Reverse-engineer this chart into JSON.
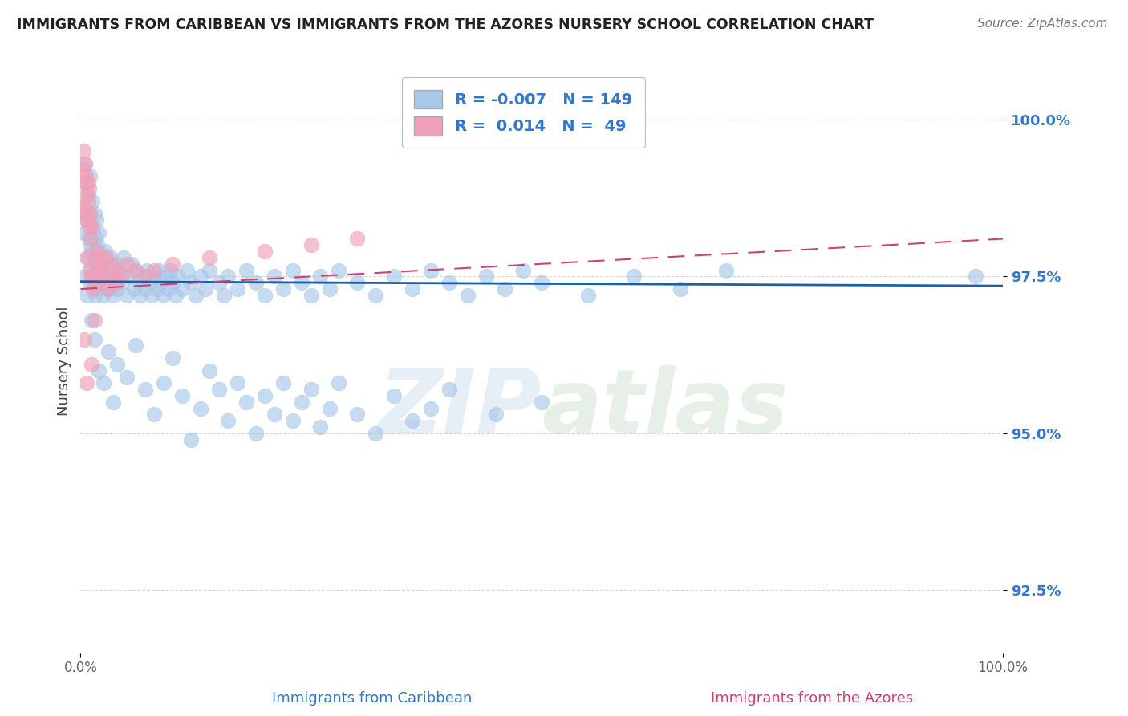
{
  "title": "IMMIGRANTS FROM CARIBBEAN VS IMMIGRANTS FROM THE AZORES NURSERY SCHOOL CORRELATION CHART",
  "source": "Source: ZipAtlas.com",
  "xlabel_blue": "Immigrants from Caribbean",
  "xlabel_pink": "Immigrants from the Azores",
  "ylabel": "Nursery School",
  "watermark_zip": "ZIP",
  "watermark_atlas": "atlas",
  "xlim": [
    0.0,
    100.0
  ],
  "ylim": [
    91.5,
    100.8
  ],
  "yticks": [
    92.5,
    95.0,
    97.5,
    100.0
  ],
  "R_blue": -0.007,
  "N_blue": 149,
  "R_pink": 0.014,
  "N_pink": 49,
  "blue_color": "#a8c8e8",
  "blue_line_color": "#1a5fa8",
  "pink_color": "#f0a0b8",
  "pink_line_color": "#d04070",
  "title_color": "#222222",
  "source_color": "#777777",
  "label_color": "#3377cc",
  "background_color": "#ffffff",
  "grid_color": "#cccccc",
  "blue_trend_y0": 97.42,
  "blue_trend_y1": 97.35,
  "pink_trend_y0": 97.3,
  "pink_trend_y1": 98.1,
  "blue_scatter_x": [
    0.3,
    0.4,
    0.5,
    0.5,
    0.6,
    0.7,
    0.7,
    0.8,
    0.8,
    0.9,
    1.0,
    1.0,
    1.0,
    1.1,
    1.1,
    1.2,
    1.2,
    1.3,
    1.3,
    1.4,
    1.4,
    1.5,
    1.5,
    1.6,
    1.6,
    1.7,
    1.7,
    1.8,
    1.8,
    1.9,
    2.0,
    2.0,
    2.1,
    2.2,
    2.3,
    2.4,
    2.5,
    2.6,
    2.7,
    2.8,
    3.0,
    3.2,
    3.3,
    3.5,
    3.7,
    3.9,
    4.0,
    4.2,
    4.5,
    4.7,
    5.0,
    5.3,
    5.5,
    5.8,
    6.0,
    6.2,
    6.5,
    6.7,
    7.0,
    7.2,
    7.5,
    7.7,
    8.0,
    8.3,
    8.5,
    8.7,
    9.0,
    9.3,
    9.5,
    9.7,
    10.0,
    10.3,
    10.5,
    11.0,
    11.5,
    12.0,
    12.5,
    13.0,
    13.5,
    14.0,
    15.0,
    15.5,
    16.0,
    17.0,
    18.0,
    19.0,
    20.0,
    21.0,
    22.0,
    23.0,
    24.0,
    25.0,
    26.0,
    27.0,
    28.0,
    30.0,
    32.0,
    34.0,
    36.0,
    38.0,
    40.0,
    42.0,
    44.0,
    46.0,
    48.0,
    50.0,
    55.0,
    60.0,
    65.0,
    70.0,
    97.0,
    1.2,
    1.5,
    2.0,
    2.5,
    3.0,
    3.5,
    4.0,
    5.0,
    6.0,
    7.0,
    8.0,
    9.0,
    10.0,
    11.0,
    12.0,
    13.0,
    14.0,
    15.0,
    16.0,
    17.0,
    18.0,
    19.0,
    20.0,
    21.0,
    22.0,
    23.0,
    24.0,
    25.0,
    26.0,
    27.0,
    28.0,
    30.0,
    32.0,
    34.0,
    36.0,
    38.0,
    40.0,
    45.0,
    50.0
  ],
  "blue_scatter_y": [
    98.6,
    98.2,
    99.3,
    97.5,
    99.0,
    98.4,
    97.2,
    98.8,
    97.8,
    98.1,
    98.5,
    97.4,
    99.1,
    98.0,
    97.6,
    98.3,
    97.9,
    97.5,
    98.7,
    97.3,
    98.2,
    97.8,
    98.5,
    97.2,
    98.1,
    97.7,
    98.4,
    97.5,
    98.0,
    97.3,
    97.9,
    98.2,
    97.6,
    97.8,
    97.4,
    97.2,
    97.7,
    97.5,
    97.9,
    97.3,
    97.6,
    97.4,
    97.8,
    97.2,
    97.5,
    97.7,
    97.3,
    97.6,
    97.4,
    97.8,
    97.2,
    97.5,
    97.7,
    97.3,
    97.6,
    97.4,
    97.2,
    97.5,
    97.3,
    97.6,
    97.4,
    97.2,
    97.5,
    97.3,
    97.6,
    97.4,
    97.2,
    97.5,
    97.3,
    97.6,
    97.4,
    97.2,
    97.5,
    97.3,
    97.6,
    97.4,
    97.2,
    97.5,
    97.3,
    97.6,
    97.4,
    97.2,
    97.5,
    97.3,
    97.6,
    97.4,
    97.2,
    97.5,
    97.3,
    97.6,
    97.4,
    97.2,
    97.5,
    97.3,
    97.6,
    97.4,
    97.2,
    97.5,
    97.3,
    97.6,
    97.4,
    97.2,
    97.5,
    97.3,
    97.6,
    97.4,
    97.2,
    97.5,
    97.3,
    97.6,
    97.5,
    96.8,
    96.5,
    96.0,
    95.8,
    96.3,
    95.5,
    96.1,
    95.9,
    96.4,
    95.7,
    95.3,
    95.8,
    96.2,
    95.6,
    94.9,
    95.4,
    96.0,
    95.7,
    95.2,
    95.8,
    95.5,
    95.0,
    95.6,
    95.3,
    95.8,
    95.2,
    95.5,
    95.7,
    95.1,
    95.4,
    95.8,
    95.3,
    95.0,
    95.6,
    95.2,
    95.4,
    95.7,
    95.3,
    95.5
  ],
  "pink_scatter_x": [
    0.2,
    0.3,
    0.3,
    0.4,
    0.5,
    0.5,
    0.6,
    0.6,
    0.7,
    0.7,
    0.8,
    0.8,
    0.9,
    0.9,
    1.0,
    1.0,
    1.1,
    1.2,
    1.3,
    1.4,
    1.5,
    1.5,
    1.6,
    1.7,
    1.8,
    1.9,
    2.0,
    2.1,
    2.2,
    2.5,
    2.8,
    3.0,
    3.3,
    3.5,
    3.8,
    4.0,
    4.5,
    5.0,
    6.0,
    7.0,
    8.0,
    10.0,
    14.0,
    20.0,
    25.0,
    30.0,
    0.4,
    0.7,
    1.2
  ],
  "pink_scatter_y": [
    99.2,
    98.6,
    99.5,
    99.0,
    98.5,
    99.3,
    98.8,
    99.1,
    98.4,
    97.8,
    98.7,
    99.0,
    98.3,
    98.9,
    97.6,
    98.5,
    98.1,
    97.5,
    98.3,
    97.3,
    97.8,
    96.8,
    97.5,
    97.9,
    97.6,
    97.4,
    97.8,
    97.5,
    97.7,
    97.5,
    97.8,
    97.3,
    97.7,
    97.5,
    97.4,
    97.6,
    97.5,
    97.7,
    97.6,
    97.5,
    97.6,
    97.7,
    97.8,
    97.9,
    98.0,
    98.1,
    96.5,
    95.8,
    96.1
  ]
}
